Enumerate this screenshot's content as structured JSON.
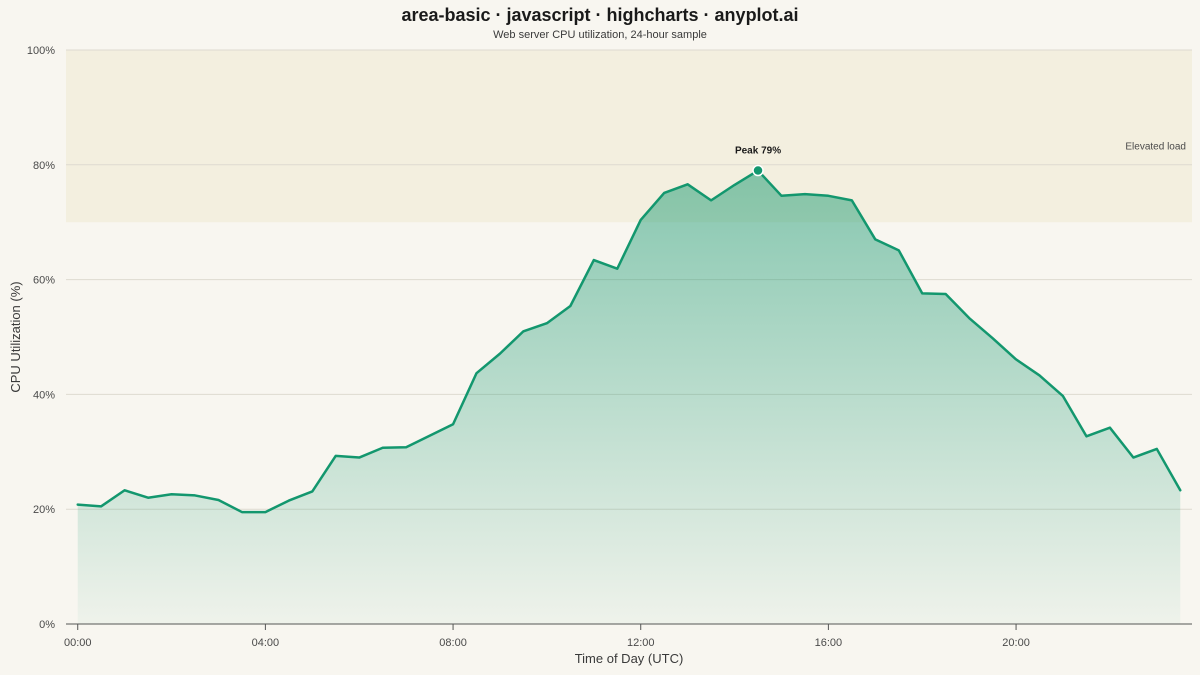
{
  "chart_data": {
    "type": "area",
    "title": "area-basic · javascript · highcharts · anyplot.ai",
    "subtitle": "Web server CPU utilization, 24-hour sample",
    "xlabel": "Time of Day (UTC)",
    "ylabel": "CPU Utilization (%)",
    "x_unit": "hours (UTC)",
    "xlim": [
      -0.25,
      23.75
    ],
    "ylim": [
      0,
      100
    ],
    "x_ticks": [
      {
        "value": 0,
        "label": "00:00"
      },
      {
        "value": 4,
        "label": "04:00"
      },
      {
        "value": 8,
        "label": "08:00"
      },
      {
        "value": 12,
        "label": "12:00"
      },
      {
        "value": 16,
        "label": "16:00"
      },
      {
        "value": 20,
        "label": "20:00"
      }
    ],
    "y_ticks": [
      {
        "value": 0,
        "label": "0%"
      },
      {
        "value": 20,
        "label": "20%"
      },
      {
        "value": 40,
        "label": "40%"
      },
      {
        "value": 60,
        "label": "60%"
      },
      {
        "value": 80,
        "label": "80%"
      },
      {
        "value": 100,
        "label": "100%"
      }
    ],
    "grid": true,
    "legend": "none",
    "band": {
      "from": 70,
      "to": 100,
      "label": "Elevated load",
      "color": "#F3EFDF"
    },
    "annotation": {
      "x": 14.5,
      "y": 79.0,
      "label": "Peak 79%"
    },
    "colors": {
      "line": "#13976E",
      "fill": "#13976E",
      "background": "#F8F6F0",
      "grid": "#DEDAD0"
    },
    "series": [
      {
        "x": [
          0,
          0.5,
          1,
          1.5,
          2,
          2.5,
          3,
          3.5,
          4,
          4.5,
          5,
          5.5,
          6,
          6.5,
          7,
          7.5,
          8,
          8.5,
          9,
          9.5,
          10,
          10.5,
          11,
          11.5,
          12,
          12.5,
          13,
          13.5,
          14,
          14.5,
          15,
          15.5,
          16,
          16.5,
          17,
          17.5,
          18,
          18.5,
          19,
          19.5,
          20,
          20.5,
          21,
          21.5,
          22,
          22.5,
          23,
          23.5
        ],
        "values": [
          20.8,
          20.5,
          23.3,
          22.0,
          22.6,
          22.4,
          21.6,
          19.5,
          19.5,
          21.5,
          23.1,
          29.3,
          29.0,
          30.7,
          30.8,
          32.8,
          34.8,
          43.7,
          47.1,
          51.0,
          52.4,
          55.4,
          63.4,
          61.9,
          70.4,
          75.1,
          76.6,
          73.8,
          76.5,
          79.0,
          74.6,
          74.9,
          74.6,
          73.8,
          67.0,
          65.1,
          57.6,
          57.5,
          53.3,
          49.8,
          46.1,
          43.3,
          39.7,
          32.7,
          34.2,
          29.0,
          30.5,
          23.3
        ]
      }
    ]
  }
}
